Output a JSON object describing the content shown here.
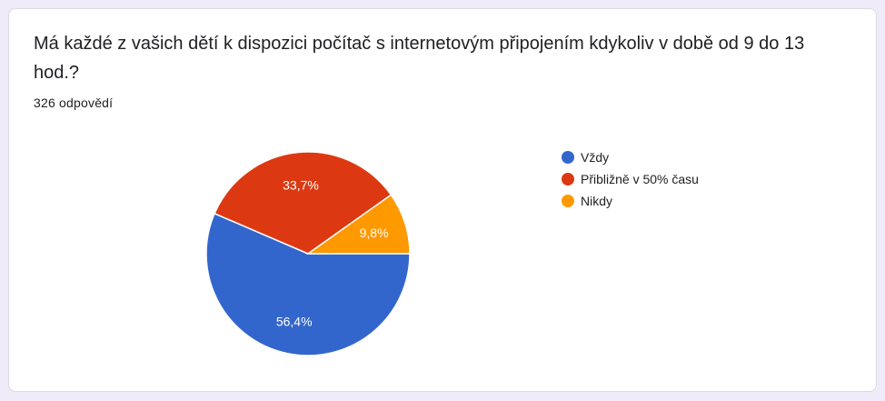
{
  "question": {
    "title": "Má každé z vašich dětí k dispozici počítač s internetovým připojením kdykoliv v době od 9 do 13 hod.?",
    "response_count": "326 odpovědí"
  },
  "colors": {
    "background": "#f0ebf8",
    "card": "#ffffff"
  },
  "chart_data": {
    "type": "pie",
    "legend_position": "right",
    "slices": [
      {
        "label": "Vždy",
        "value": 56.4,
        "value_label": "56,4%",
        "color": "#3366cc"
      },
      {
        "label": "Přibližně v 50% času",
        "value": 33.7,
        "value_label": "33,7%",
        "color": "#dc3912"
      },
      {
        "label": "Nikdy",
        "value": 9.8,
        "value_label": "9,8%",
        "color": "#ff9900"
      }
    ]
  }
}
